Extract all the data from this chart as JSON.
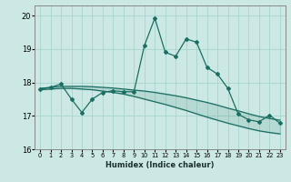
{
  "xlabel": "Humidex (Indice chaleur)",
  "background_color": "#cce8e4",
  "grid_color": "#a8d4ce",
  "line_color": "#1a6e62",
  "xlim": [
    -0.5,
    23.5
  ],
  "ylim": [
    16.0,
    20.3
  ],
  "yticks": [
    16,
    17,
    18,
    19,
    20
  ],
  "xticks": [
    0,
    1,
    2,
    3,
    4,
    5,
    6,
    7,
    8,
    9,
    10,
    11,
    12,
    13,
    14,
    15,
    16,
    17,
    18,
    19,
    20,
    21,
    22,
    23
  ],
  "main_x": [
    0,
    1,
    2,
    3,
    4,
    5,
    6,
    7,
    8,
    9,
    10,
    11,
    12,
    13,
    14,
    15,
    16,
    17,
    18,
    19,
    20,
    21,
    22,
    23
  ],
  "main_y": [
    17.8,
    17.85,
    17.95,
    17.5,
    17.1,
    17.5,
    17.7,
    17.75,
    17.72,
    17.72,
    19.1,
    19.92,
    18.9,
    18.78,
    19.3,
    19.2,
    18.45,
    18.25,
    17.82,
    17.05,
    16.88,
    16.82,
    17.02,
    16.78
  ],
  "upper_x": [
    0,
    1,
    2,
    3,
    4,
    5,
    6,
    7,
    8,
    9,
    10,
    11,
    12,
    13,
    14,
    15,
    16,
    17,
    18,
    19,
    20,
    21,
    22,
    23
  ],
  "upper_y": [
    17.82,
    17.85,
    17.88,
    17.88,
    17.88,
    17.87,
    17.85,
    17.83,
    17.8,
    17.77,
    17.74,
    17.7,
    17.65,
    17.6,
    17.54,
    17.47,
    17.4,
    17.32,
    17.23,
    17.15,
    17.06,
    16.98,
    16.92,
    16.87
  ],
  "lower_x": [
    0,
    1,
    2,
    3,
    4,
    5,
    6,
    7,
    8,
    9,
    10,
    11,
    12,
    13,
    14,
    15,
    16,
    17,
    18,
    19,
    20,
    21,
    22,
    23
  ],
  "lower_y": [
    17.78,
    17.8,
    17.82,
    17.82,
    17.8,
    17.78,
    17.74,
    17.7,
    17.65,
    17.58,
    17.5,
    17.42,
    17.34,
    17.25,
    17.16,
    17.06,
    16.96,
    16.87,
    16.78,
    16.7,
    16.62,
    16.55,
    16.5,
    16.46
  ]
}
